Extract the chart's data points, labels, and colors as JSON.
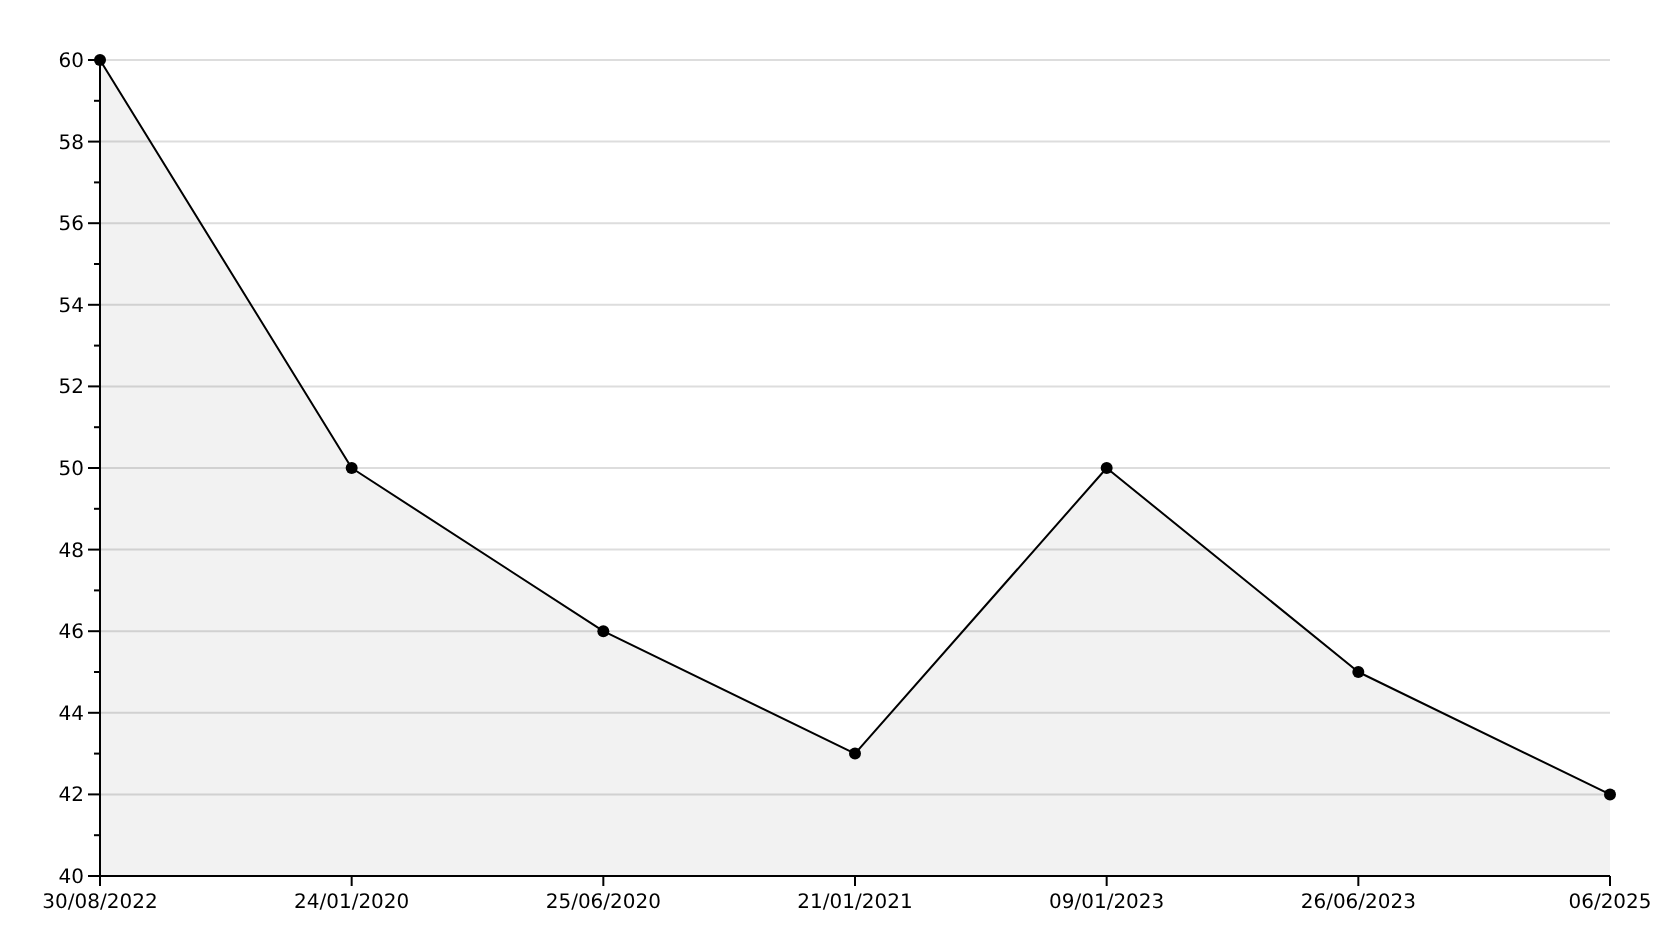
{
  "chart_data": {
    "type": "area",
    "categories": [
      "30/08/2022",
      "24/01/2020",
      "25/06/2020",
      "21/01/2021",
      "09/01/2023",
      "26/06/2023",
      "06/2025"
    ],
    "series": [
      {
        "color": "#000000",
        "values": [
          60,
          50,
          46,
          43,
          50,
          45,
          42
        ]
      }
    ],
    "ylim": [
      40,
      60
    ],
    "yticks": [
      40,
      {
        "value": 41,
        "label": null
      },
      42,
      {
        "value": 43,
        "label": null
      },
      44,
      {
        "value": 45,
        "label": null
      },
      46,
      {
        "value": 47,
        "label": null
      },
      48,
      {
        "value": 49,
        "label": null
      },
      50,
      {
        "value": 51,
        "label": null
      },
      52,
      {
        "value": 53,
        "label": null
      },
      54,
      {
        "value": 55,
        "label": null
      },
      56,
      {
        "value": 57,
        "label": null
      },
      58,
      {
        "value": 59,
        "label": null
      },
      60
    ],
    "grid": "y",
    "marker": "circle",
    "line_style": "solid"
  }
}
